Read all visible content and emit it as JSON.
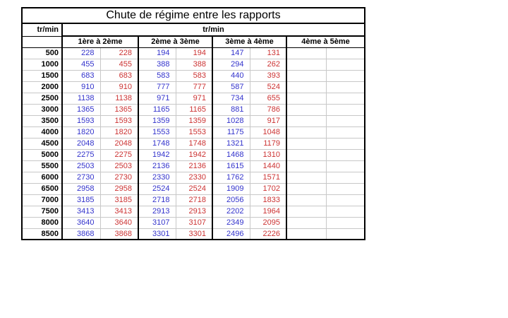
{
  "title": "Chute de régime entre les rapports",
  "corner_header": "tr/min",
  "span_header": "tr/min",
  "gear_headers": [
    "1ère à 2ème",
    "2ème à 3ème",
    "3ème à 4ème",
    "4ème à 5ème"
  ],
  "colors": {
    "value_blue": "#3333CC",
    "value_red": "#CC3333",
    "gridline": "#C8C8C8",
    "border": "#000000"
  },
  "rows": [
    {
      "rpm": "500",
      "values": [
        "228",
        "228",
        "194",
        "194",
        "147",
        "131",
        "",
        ""
      ]
    },
    {
      "rpm": "1000",
      "values": [
        "455",
        "455",
        "388",
        "388",
        "294",
        "262",
        "",
        ""
      ]
    },
    {
      "rpm": "1500",
      "values": [
        "683",
        "683",
        "583",
        "583",
        "440",
        "393",
        "",
        ""
      ]
    },
    {
      "rpm": "2000",
      "values": [
        "910",
        "910",
        "777",
        "777",
        "587",
        "524",
        "",
        ""
      ]
    },
    {
      "rpm": "2500",
      "values": [
        "1138",
        "1138",
        "971",
        "971",
        "734",
        "655",
        "",
        ""
      ]
    },
    {
      "rpm": "3000",
      "values": [
        "1365",
        "1365",
        "1165",
        "1165",
        "881",
        "786",
        "",
        ""
      ]
    },
    {
      "rpm": "3500",
      "values": [
        "1593",
        "1593",
        "1359",
        "1359",
        "1028",
        "917",
        "",
        ""
      ]
    },
    {
      "rpm": "4000",
      "values": [
        "1820",
        "1820",
        "1553",
        "1553",
        "1175",
        "1048",
        "",
        ""
      ]
    },
    {
      "rpm": "4500",
      "values": [
        "2048",
        "2048",
        "1748",
        "1748",
        "1321",
        "1179",
        "",
        ""
      ]
    },
    {
      "rpm": "5000",
      "values": [
        "2275",
        "2275",
        "1942",
        "1942",
        "1468",
        "1310",
        "",
        ""
      ]
    },
    {
      "rpm": "5500",
      "values": [
        "2503",
        "2503",
        "2136",
        "2136",
        "1615",
        "1440",
        "",
        ""
      ]
    },
    {
      "rpm": "6000",
      "values": [
        "2730",
        "2730",
        "2330",
        "2330",
        "1762",
        "1571",
        "",
        ""
      ]
    },
    {
      "rpm": "6500",
      "values": [
        "2958",
        "2958",
        "2524",
        "2524",
        "1909",
        "1702",
        "",
        ""
      ]
    },
    {
      "rpm": "7000",
      "values": [
        "3185",
        "3185",
        "2718",
        "2718",
        "2056",
        "1833",
        "",
        ""
      ]
    },
    {
      "rpm": "7500",
      "values": [
        "3413",
        "3413",
        "2913",
        "2913",
        "2202",
        "1964",
        "",
        ""
      ]
    },
    {
      "rpm": "8000",
      "values": [
        "3640",
        "3640",
        "3107",
        "3107",
        "2349",
        "2095",
        "",
        ""
      ]
    },
    {
      "rpm": "8500",
      "values": [
        "3868",
        "3868",
        "3301",
        "3301",
        "2496",
        "2226",
        "",
        ""
      ]
    }
  ]
}
